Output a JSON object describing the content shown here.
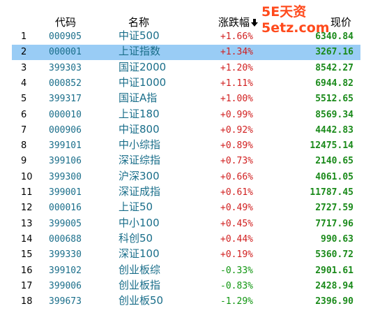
{
  "header": {
    "code_label": "代码",
    "name_label": "名称",
    "change_label": "涨跌幅",
    "price_label": "现价"
  },
  "watermark": "5E天资5etz.com",
  "selected_index": 2,
  "colors": {
    "up": "#d11f1f",
    "down": "#119611",
    "price": "#1a8a1a",
    "code": "#1a6e8a",
    "selected": "#99ccf5",
    "watermark": "#ff4a1c"
  },
  "rows": [
    {
      "idx": "1",
      "code": "000905",
      "name": "中证500",
      "change": "+1.66%",
      "price": "6340.84",
      "dir": "up"
    },
    {
      "idx": "2",
      "code": "000001",
      "name": "上证指数",
      "change": "+1.34%",
      "price": "3267.16",
      "dir": "up"
    },
    {
      "idx": "3",
      "code": "399303",
      "name": "国证2000",
      "change": "+1.20%",
      "price": "8542.27",
      "dir": "up"
    },
    {
      "idx": "4",
      "code": "000852",
      "name": "中证1000",
      "change": "+1.11%",
      "price": "6944.82",
      "dir": "up"
    },
    {
      "idx": "5",
      "code": "399317",
      "name": "国证A指",
      "change": "+1.00%",
      "price": "5512.65",
      "dir": "up"
    },
    {
      "idx": "6",
      "code": "000010",
      "name": "上证180",
      "change": "+0.99%",
      "price": "8569.34",
      "dir": "up"
    },
    {
      "idx": "7",
      "code": "000906",
      "name": "中证800",
      "change": "+0.92%",
      "price": "4442.83",
      "dir": "up"
    },
    {
      "idx": "8",
      "code": "399101",
      "name": "中小综指",
      "change": "+0.89%",
      "price": "12475.14",
      "dir": "up"
    },
    {
      "idx": "9",
      "code": "399106",
      "name": "深证综指",
      "change": "+0.73%",
      "price": "2140.65",
      "dir": "up"
    },
    {
      "idx": "10",
      "code": "399300",
      "name": "沪深300",
      "change": "+0.66%",
      "price": "4061.05",
      "dir": "up"
    },
    {
      "idx": "11",
      "code": "399001",
      "name": "深证成指",
      "change": "+0.61%",
      "price": "11787.45",
      "dir": "up"
    },
    {
      "idx": "12",
      "code": "000016",
      "name": "上证50",
      "change": "+0.49%",
      "price": "2727.59",
      "dir": "up"
    },
    {
      "idx": "13",
      "code": "399005",
      "name": "中小100",
      "change": "+0.45%",
      "price": "7717.96",
      "dir": "up"
    },
    {
      "idx": "14",
      "code": "000688",
      "name": "科创50",
      "change": "+0.44%",
      "price": "990.63",
      "dir": "up"
    },
    {
      "idx": "15",
      "code": "399330",
      "name": "深证100",
      "change": "+0.19%",
      "price": "5360.72",
      "dir": "up"
    },
    {
      "idx": "16",
      "code": "399102",
      "name": "创业板综",
      "change": "-0.33%",
      "price": "2901.61",
      "dir": "down"
    },
    {
      "idx": "17",
      "code": "399006",
      "name": "创业板指",
      "change": "-0.83%",
      "price": "2428.94",
      "dir": "down"
    },
    {
      "idx": "18",
      "code": "399673",
      "name": "创业板50",
      "change": "-1.29%",
      "price": "2396.90",
      "dir": "down"
    }
  ]
}
